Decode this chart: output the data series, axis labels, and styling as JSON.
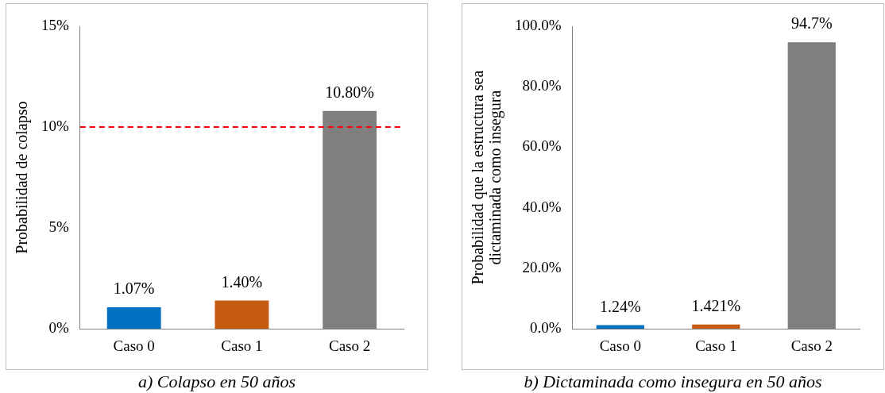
{
  "chart_data": [
    {
      "type": "bar",
      "title": "a) Colapso en 50 años",
      "ylabel": "Probabilidad de colapso",
      "categories": [
        "Caso 0",
        "Caso 1",
        "Caso 2"
      ],
      "values": [
        1.07,
        1.4,
        10.8
      ],
      "colors": [
        "#0070c0",
        "#c55a11",
        "#7f7f7f"
      ],
      "value_labels": [
        "1.07%",
        "1.40%",
        "10.80%"
      ],
      "ylim": [
        0,
        15
      ],
      "yticks": [
        {
          "value": 0,
          "label": "0%"
        },
        {
          "value": 5,
          "label": "5%"
        },
        {
          "value": 10,
          "label": "10%"
        },
        {
          "value": 15,
          "label": "15%"
        }
      ],
      "ref_lines": [
        {
          "axis": "y",
          "value": 10,
          "color": "#ff0000",
          "line_style": "dashed"
        }
      ],
      "legend": false
    },
    {
      "type": "bar",
      "title": "b) Dictaminada como insegura en 50 años",
      "ylabel": "Probabilidad que la estructura sea\ndictaminada como insegura",
      "categories": [
        "Caso 0",
        "Caso 1",
        "Caso 2"
      ],
      "values": [
        1.24,
        1.421,
        94.7
      ],
      "colors": [
        "#0070c0",
        "#c55a11",
        "#7f7f7f"
      ],
      "value_labels": [
        "1.24%",
        "1.421%",
        "94.7%"
      ],
      "ylim": [
        0,
        100
      ],
      "yticks": [
        {
          "value": 0,
          "label": "0.0%"
        },
        {
          "value": 20,
          "label": "20.0%"
        },
        {
          "value": 40,
          "label": "40.0%"
        },
        {
          "value": 60,
          "label": "60.0%"
        },
        {
          "value": 80,
          "label": "80.0%"
        },
        {
          "value": 100,
          "label": "100.0%"
        }
      ],
      "legend": false
    }
  ]
}
